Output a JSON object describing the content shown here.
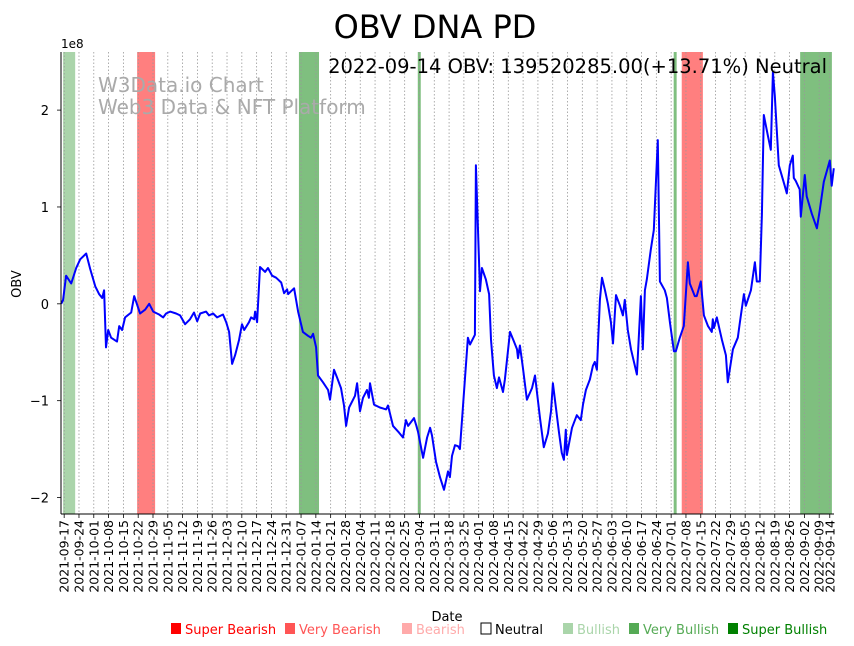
{
  "chart_data": {
    "type": "line",
    "title": "OBV DNA PD",
    "annotation": "2022-09-14 OBV: 139520285.00(+13.71%) Neutral",
    "watermark": [
      "W3Data.io Chart",
      "Web3 Data & NFT Platform"
    ],
    "xlabel": "Date",
    "ylabel": "OBV",
    "y_scale_label": "1e8",
    "start_date": "2021-09-17",
    "x_unit": "days since start_date",
    "xlim": [
      -1.5,
      364
    ],
    "ylim": [
      -2.17,
      2.6
    ],
    "y_ticks": [
      2,
      1,
      0,
      -1,
      -2
    ],
    "y_tick_labels": [
      "2",
      "1",
      "0",
      "−1",
      "−2"
    ],
    "grid": "vertical dotted at each x tick",
    "x_tick_labels": [
      "2021-09-17",
      "2021-09-24",
      "2021-10-01",
      "2021-10-08",
      "2021-10-15",
      "2021-10-22",
      "2021-10-29",
      "2021-11-05",
      "2021-11-12",
      "2021-11-19",
      "2021-11-26",
      "2021-12-03",
      "2021-12-10",
      "2021-12-17",
      "2021-12-24",
      "2021-12-31",
      "2022-01-07",
      "2022-01-14",
      "2022-01-21",
      "2022-01-28",
      "2022-02-04",
      "2022-02-11",
      "2022-02-18",
      "2022-02-25",
      "2022-03-04",
      "2022-03-11",
      "2022-03-18",
      "2022-03-25",
      "2022-04-01",
      "2022-04-08",
      "2022-04-15",
      "2022-04-22",
      "2022-04-29",
      "2022-05-06",
      "2022-05-13",
      "2022-05-20",
      "2022-05-27",
      "2022-06-03",
      "2022-06-10",
      "2022-06-17",
      "2022-06-24",
      "2022-07-01",
      "2022-07-08",
      "2022-07-15",
      "2022-07-22",
      "2022-07-29",
      "2022-08-05",
      "2022-08-12",
      "2022-08-19",
      "2022-08-26",
      "2022-09-02",
      "2022-09-09",
      "2022-09-14"
    ],
    "series": [
      {
        "name": "OBV",
        "color": "#0000ff",
        "points": [
          [
            -1.4,
            0
          ],
          [
            -0.5,
            0.04
          ],
          [
            0.9,
            0.29
          ],
          [
            3.3,
            0.21
          ],
          [
            5.7,
            0.37
          ],
          [
            7.6,
            0.46
          ],
          [
            10.4,
            0.52
          ],
          [
            12.3,
            0.36
          ],
          [
            14.7,
            0.18
          ],
          [
            16.5,
            0.1
          ],
          [
            18,
            0.06
          ],
          [
            18.9,
            0.14
          ],
          [
            19.8,
            -0.45
          ],
          [
            20.8,
            -0.27
          ],
          [
            22.2,
            -0.35
          ],
          [
            25,
            -0.39
          ],
          [
            26,
            -0.23
          ],
          [
            27.4,
            -0.27
          ],
          [
            28.8,
            -0.14
          ],
          [
            31.7,
            -0.09
          ],
          [
            33.1,
            0.08
          ],
          [
            35.9,
            -0.1
          ],
          [
            38.3,
            -0.06
          ],
          [
            40.2,
            0
          ],
          [
            42.1,
            -0.08
          ],
          [
            44.9,
            -0.11
          ],
          [
            46.8,
            -0.14
          ],
          [
            48.2,
            -0.1
          ],
          [
            50.1,
            -0.08
          ],
          [
            52.9,
            -0.1
          ],
          [
            54.8,
            -0.12
          ],
          [
            57.2,
            -0.21
          ],
          [
            59.5,
            -0.16
          ],
          [
            61.4,
            -0.09
          ],
          [
            62.9,
            -0.18
          ],
          [
            64.3,
            -0.1
          ],
          [
            67.1,
            -0.08
          ],
          [
            68.5,
            -0.12
          ],
          [
            70.4,
            -0.1
          ],
          [
            72.3,
            -0.14
          ],
          [
            75.1,
            -0.11
          ],
          [
            76.6,
            -0.19
          ],
          [
            78,
            -0.29
          ],
          [
            79.4,
            -0.62
          ],
          [
            80.8,
            -0.53
          ],
          [
            82.7,
            -0.37
          ],
          [
            84.1,
            -0.21
          ],
          [
            85.1,
            -0.27
          ],
          [
            87.4,
            -0.19
          ],
          [
            88.4,
            -0.14
          ],
          [
            89.8,
            -0.16
          ],
          [
            90.3,
            -0.08
          ],
          [
            91.2,
            -0.19
          ],
          [
            92.6,
            0.38
          ],
          [
            95,
            0.33
          ],
          [
            96.4,
            0.37
          ],
          [
            98.3,
            0.29
          ],
          [
            100.2,
            0.27
          ],
          [
            102.6,
            0.22
          ],
          [
            104,
            0.11
          ],
          [
            105.4,
            0.15
          ],
          [
            105.9,
            0.1
          ],
          [
            107.3,
            0.13
          ],
          [
            108.7,
            0.16
          ],
          [
            110.6,
            -0.08
          ],
          [
            112.9,
            -0.29
          ],
          [
            115.3,
            -0.33
          ],
          [
            116.7,
            -0.35
          ],
          [
            117.7,
            -0.31
          ],
          [
            119.1,
            -0.45
          ],
          [
            120,
            -0.74
          ],
          [
            122.4,
            -0.81
          ],
          [
            124.8,
            -0.89
          ],
          [
            125.7,
            -0.99
          ],
          [
            127.6,
            -0.68
          ],
          [
            129,
            -0.76
          ],
          [
            130.9,
            -0.87
          ],
          [
            132.3,
            -1.05
          ],
          [
            133.3,
            -1.26
          ],
          [
            134.7,
            -1.07
          ],
          [
            137.5,
            -0.95
          ],
          [
            138.5,
            -0.82
          ],
          [
            139.9,
            -1.11
          ],
          [
            141.3,
            -0.97
          ],
          [
            143.2,
            -0.89
          ],
          [
            144.1,
            -0.97
          ],
          [
            144.6,
            -0.82
          ],
          [
            146.5,
            -1.04
          ],
          [
            149.3,
            -1.07
          ],
          [
            152.2,
            -1.09
          ],
          [
            153.1,
            -1.05
          ],
          [
            155.5,
            -1.26
          ],
          [
            158.3,
            -1.33
          ],
          [
            160.2,
            -1.38
          ],
          [
            161.6,
            -1.2
          ],
          [
            162.6,
            -1.26
          ],
          [
            165.4,
            -1.18
          ],
          [
            166.4,
            -1.25
          ],
          [
            167.3,
            -1.32
          ],
          [
            169.7,
            -1.59
          ],
          [
            171.6,
            -1.38
          ],
          [
            173,
            -1.28
          ],
          [
            173.9,
            -1.36
          ],
          [
            175.8,
            -1.63
          ],
          [
            177.7,
            -1.79
          ],
          [
            179.6,
            -1.92
          ],
          [
            181.5,
            -1.73
          ],
          [
            182.4,
            -1.79
          ],
          [
            183.4,
            -1.57
          ],
          [
            184.8,
            -1.46
          ],
          [
            186.2,
            -1.47
          ],
          [
            187.1,
            -1.5
          ],
          [
            188.1,
            -1.2
          ],
          [
            189.5,
            -0.78
          ],
          [
            190.9,
            -0.35
          ],
          [
            191.9,
            -0.42
          ],
          [
            194.2,
            -0.32
          ],
          [
            194.7,
            1.43
          ],
          [
            196.6,
            0.13
          ],
          [
            197.5,
            0.37
          ],
          [
            199.4,
            0.25
          ],
          [
            200.9,
            0.1
          ],
          [
            201.8,
            -0.37
          ],
          [
            203.2,
            -0.74
          ],
          [
            204.6,
            -0.87
          ],
          [
            205.6,
            -0.76
          ],
          [
            207.5,
            -0.91
          ],
          [
            208.4,
            -0.78
          ],
          [
            210.8,
            -0.29
          ],
          [
            212.7,
            -0.39
          ],
          [
            214.1,
            -0.47
          ],
          [
            214.6,
            -0.56
          ],
          [
            215.5,
            -0.43
          ],
          [
            216.9,
            -0.66
          ],
          [
            218.8,
            -0.99
          ],
          [
            221.2,
            -0.87
          ],
          [
            222.6,
            -0.74
          ],
          [
            225,
            -1.18
          ],
          [
            226.8,
            -1.48
          ],
          [
            228.7,
            -1.34
          ],
          [
            230.2,
            -1.11
          ],
          [
            231.1,
            -0.82
          ],
          [
            232.5,
            -1.07
          ],
          [
            233.9,
            -1.32
          ],
          [
            235.3,
            -1.54
          ],
          [
            236.3,
            -1.61
          ],
          [
            237.2,
            -1.3
          ],
          [
            237.7,
            -1.56
          ],
          [
            240.1,
            -1.28
          ],
          [
            242.4,
            -1.15
          ],
          [
            244.3,
            -1.2
          ],
          [
            245.3,
            -1.04
          ],
          [
            246.7,
            -0.89
          ],
          [
            248.6,
            -0.78
          ],
          [
            250,
            -0.64
          ],
          [
            250.9,
            -0.6
          ],
          [
            251.9,
            -0.68
          ],
          [
            253.3,
            0.04
          ],
          [
            254.3,
            0.27
          ],
          [
            255.7,
            0.14
          ],
          [
            257.1,
            0
          ],
          [
            258.5,
            -0.19
          ],
          [
            259.5,
            -0.41
          ],
          [
            260.9,
            0.09
          ],
          [
            262.8,
            -0.02
          ],
          [
            264.2,
            -0.12
          ],
          [
            265.1,
            0.04
          ],
          [
            266.5,
            -0.27
          ],
          [
            268,
            -0.47
          ],
          [
            270.8,
            -0.73
          ],
          [
            272.7,
            0.08
          ],
          [
            273.6,
            -0.47
          ],
          [
            274.6,
            0.14
          ],
          [
            275.5,
            0.25
          ],
          [
            277.4,
            0.56
          ],
          [
            278.8,
            0.76
          ],
          [
            280.7,
            1.69
          ],
          [
            281.7,
            0.23
          ],
          [
            284,
            0.14
          ],
          [
            285,
            0.06
          ],
          [
            286.4,
            -0.19
          ],
          [
            288.3,
            -0.49
          ],
          [
            289.2,
            -0.49
          ],
          [
            291.1,
            -0.35
          ],
          [
            293,
            -0.23
          ],
          [
            294.9,
            0.43
          ],
          [
            295.8,
            0.21
          ],
          [
            298.2,
            0.08
          ],
          [
            299.1,
            0.08
          ],
          [
            301,
            0.23
          ],
          [
            302.5,
            -0.12
          ],
          [
            304.4,
            -0.23
          ],
          [
            306.2,
            -0.29
          ],
          [
            306.7,
            -0.16
          ],
          [
            307.2,
            -0.25
          ],
          [
            308.6,
            -0.14
          ],
          [
            311,
            -0.37
          ],
          [
            312.9,
            -0.53
          ],
          [
            313.8,
            -0.81
          ],
          [
            316.2,
            -0.47
          ],
          [
            318.5,
            -0.35
          ],
          [
            319.5,
            -0.19
          ],
          [
            321.4,
            0.1
          ],
          [
            322.3,
            -0.02
          ],
          [
            324.7,
            0.14
          ],
          [
            326.6,
            0.43
          ],
          [
            327.5,
            0.23
          ],
          [
            328.9,
            0.23
          ],
          [
            329.9,
            0.92
          ],
          [
            330.8,
            1.95
          ],
          [
            332.7,
            1.74
          ],
          [
            334.1,
            1.59
          ],
          [
            335.1,
            2.39
          ],
          [
            336,
            2.15
          ],
          [
            337.9,
            1.43
          ],
          [
            340.7,
            1.22
          ],
          [
            341.7,
            1.14
          ],
          [
            343.1,
            1.43
          ],
          [
            344.5,
            1.53
          ],
          [
            345,
            1.3
          ],
          [
            345.9,
            1.27
          ],
          [
            347.8,
            1.18
          ],
          [
            348.3,
            0.9
          ],
          [
            350.2,
            1.33
          ],
          [
            351.1,
            1.11
          ],
          [
            353.5,
            0.93
          ],
          [
            355.9,
            0.78
          ],
          [
            357.3,
            0.97
          ],
          [
            359.2,
            1.26
          ],
          [
            362,
            1.48
          ],
          [
            362.9,
            1.22
          ],
          [
            363.9,
            1.4
          ]
        ]
      }
    ],
    "bands": [
      {
        "start": -0.5,
        "end": 5.2,
        "level": "very_bullish"
      },
      {
        "start": 34.5,
        "end": 43,
        "level": "super_bearish"
      },
      {
        "start": 111,
        "end": 120.5,
        "level": "super_bullish"
      },
      {
        "start": 167.2,
        "end": 168.6,
        "level": "super_bullish"
      },
      {
        "start": 288.2,
        "end": 289.6,
        "level": "super_bullish"
      },
      {
        "start": 292,
        "end": 302,
        "level": "super_bearish"
      },
      {
        "start": 348,
        "end": 363,
        "level": "super_bullish"
      }
    ],
    "legend": {
      "placement": "bottom-right",
      "items": [
        {
          "key": "super_bearish",
          "label": "Super Bearish",
          "color": "#ff0000"
        },
        {
          "key": "very_bearish",
          "label": "Very Bearish",
          "color": "#ff5555"
        },
        {
          "key": "bearish",
          "label": "Bearish",
          "color": "#ffaaaa"
        },
        {
          "key": "neutral",
          "label": "Neutral",
          "color": "#ffffff"
        },
        {
          "key": "bullish",
          "label": "Bullish",
          "color": "#aad5aa"
        },
        {
          "key": "very_bullish",
          "label": "Very Bullish",
          "color": "#55aa55"
        },
        {
          "key": "super_bullish",
          "label": "Super Bullish",
          "color": "#008000"
        }
      ]
    }
  }
}
